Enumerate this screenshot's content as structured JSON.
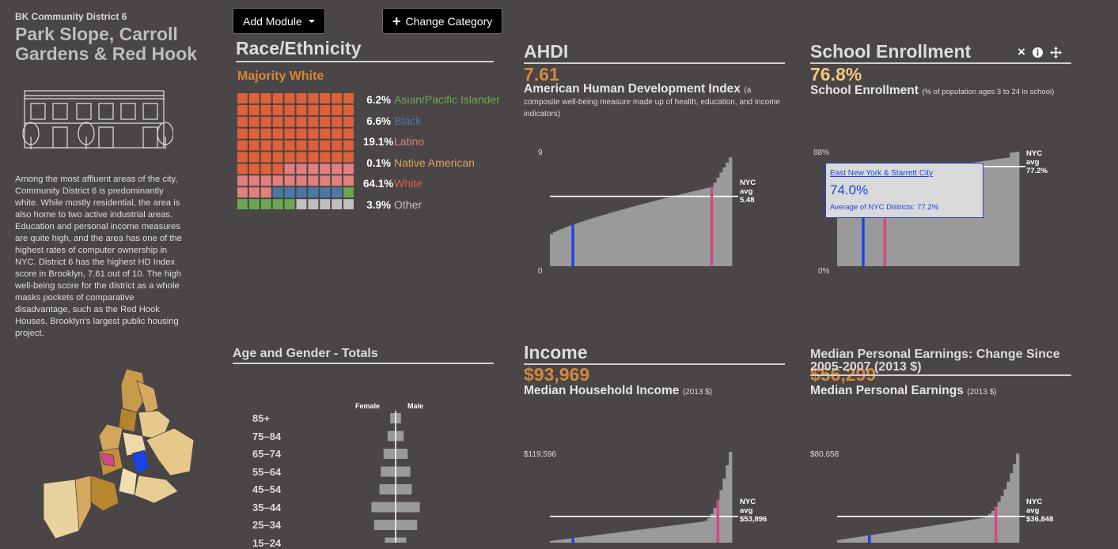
{
  "sidebar": {
    "district_label": "BK Community District 6",
    "district_name": "Park Slope, Carroll Gardens & Red Hook",
    "description": "Among the most affluent areas of the city, Community District 6 is predominantly white. While mostly residential, the area is also home to two active industrial areas. Education and personal income measures are quite high, and the area has one of the highest rates of computer ownership in NYC. District 6 has the highest HD Index score in Brooklyn, 7.61 out of 10. The high well-being score for the district as a whole masks pockets of comparative disadvantage, such as the Red Hook Houses, Brooklyn's largest public housing project."
  },
  "toolbar": {
    "add_module_label": "Add Module",
    "change_category_label": "Change Category"
  },
  "race": {
    "title": "Race/Ethnicity",
    "majority": "Majority White",
    "items": [
      {
        "pct": "6.2%",
        "label": "Asian/Pacific Islander",
        "color": "#6aa84f"
      },
      {
        "pct": "6.6%",
        "label": "Black",
        "color": "#4a78a8"
      },
      {
        "pct": "19.1%",
        "label": "Latino",
        "color": "#e2807d"
      },
      {
        "pct": "0.1%",
        "label": "Native American",
        "color": "#e3a25e"
      },
      {
        "pct": "64.1%",
        "label": "White",
        "color": "#e0603a"
      },
      {
        "pct": "3.9%",
        "label": "Other",
        "color": "#bfbfbf"
      }
    ]
  },
  "ahdi": {
    "title": "AHDI",
    "value": "7.61",
    "subtitle": "American Human Development Index",
    "note": "(a composite well-being measure made up of health, education, and income indicators)",
    "y_max_label": "9",
    "y_min_label": "0",
    "nyc_line1": "NYC",
    "nyc_line2": "avg",
    "nyc_value": "5.48"
  },
  "school": {
    "title": "School Enrollment",
    "value": "76.8%",
    "subtitle": "School Enrollment",
    "note": "(% of population ages 3 to 24 in school)",
    "y_max_label": "88%",
    "y_min_label": "0%",
    "nyc_line1": "NYC",
    "nyc_line2": "avg",
    "nyc_value": "77.2%",
    "tooltip_link": "East New York & Starrett City",
    "tooltip_value": "74.0%",
    "tooltip_avg": "Average of NYC Districts: 77.2%",
    "close_icon": "×"
  },
  "age": {
    "title": "Age and Gender - Totals",
    "female_label": "Female",
    "male_label": "Male",
    "groups": [
      "85+",
      "75–84",
      "65–74",
      "55–64",
      "45–54",
      "35–44",
      "25–34",
      "15–24"
    ],
    "female_share": [
      0.2,
      0.3,
      0.45,
      0.55,
      0.6,
      0.9,
      0.8,
      0.4
    ],
    "male_share": [
      0.2,
      0.3,
      0.45,
      0.55,
      0.6,
      0.9,
      0.8,
      0.4
    ]
  },
  "income": {
    "title": "Income",
    "value": "$93,969",
    "subtitle": "Median Household Income",
    "note": "(2013 $)",
    "y_max_label": "$119,596",
    "nyc_line1": "NYC",
    "nyc_line2": "avg",
    "nyc_value": "$53,896"
  },
  "earnings": {
    "title": "Median Personal Earnings: Change Since 2005-2007 (2013 $)",
    "value": "$56,299",
    "subtitle": "Median Personal Earnings",
    "note": "(2013 $)",
    "y_max_label": "$80,658",
    "nyc_line1": "NYC",
    "nyc_line2": "avg",
    "nyc_value": "$36,848"
  },
  "colors": {
    "background": "#4a4546",
    "accent_orange": "#d4893a",
    "highlight_pink": "#d6478a",
    "highlight_blue": "#1a44e6",
    "bar_gray": "#9a9a9a"
  }
}
